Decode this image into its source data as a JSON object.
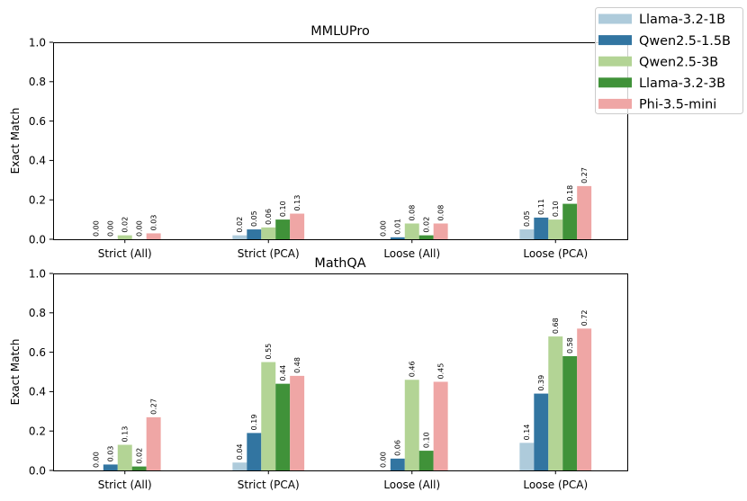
{
  "chart_data": [
    {
      "type": "bar",
      "title": "MMLUPro",
      "xlabel": "",
      "ylabel": "Exact Match",
      "ylim": [
        0,
        1.0
      ],
      "yticks": [
        "0.0",
        "0.2",
        "0.4",
        "0.6",
        "0.8",
        "1.0"
      ],
      "grid": false,
      "legend": "top-right",
      "categories": [
        "Strict (All)",
        "Strict (PCA)",
        "Loose (All)",
        "Loose (PCA)"
      ],
      "series": [
        {
          "name": "Llama-3.2-1B",
          "color": "#aecbdb",
          "values": [
            0.0,
            0.02,
            0.0,
            0.05
          ]
        },
        {
          "name": "Qwen2.5-1.5B",
          "color": "#3275a1",
          "values": [
            0.0,
            0.05,
            0.01,
            0.11
          ]
        },
        {
          "name": "Qwen2.5-3B",
          "color": "#b3d495",
          "values": [
            0.02,
            0.06,
            0.08,
            0.1
          ]
        },
        {
          "name": "Llama-3.2-3B",
          "color": "#409239",
          "values": [
            0.0,
            0.1,
            0.02,
            0.18
          ]
        },
        {
          "name": "Phi-3.5-mini",
          "color": "#efa6a5",
          "values": [
            0.03,
            0.13,
            0.08,
            0.27
          ]
        }
      ]
    },
    {
      "type": "bar",
      "title": "MathQA",
      "xlabel": "",
      "ylabel": "Exact Match",
      "ylim": [
        0,
        1.0
      ],
      "yticks": [
        "0.0",
        "0.2",
        "0.4",
        "0.6",
        "0.8",
        "1.0"
      ],
      "grid": false,
      "legend": "top-right",
      "categories": [
        "Strict (All)",
        "Strict (PCA)",
        "Loose (All)",
        "Loose (PCA)"
      ],
      "series": [
        {
          "name": "Llama-3.2-1B",
          "color": "#aecbdb",
          "values": [
            0.0,
            0.04,
            0.0,
            0.14
          ]
        },
        {
          "name": "Qwen2.5-1.5B",
          "color": "#3275a1",
          "values": [
            0.03,
            0.19,
            0.06,
            0.39
          ]
        },
        {
          "name": "Qwen2.5-3B",
          "color": "#b3d495",
          "values": [
            0.13,
            0.55,
            0.46,
            0.68
          ]
        },
        {
          "name": "Llama-3.2-3B",
          "color": "#409239",
          "values": [
            0.02,
            0.44,
            0.1,
            0.58
          ]
        },
        {
          "name": "Phi-3.5-mini",
          "color": "#efa6a5",
          "values": [
            0.27,
            0.48,
            0.45,
            0.72
          ]
        }
      ]
    }
  ]
}
